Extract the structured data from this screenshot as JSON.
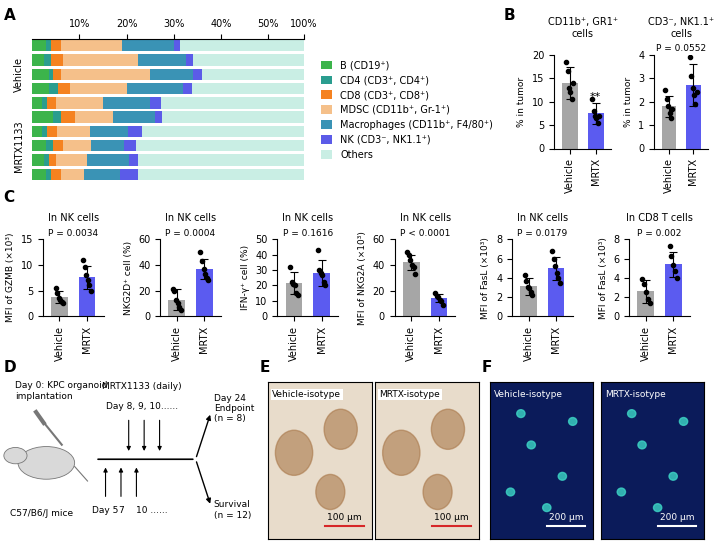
{
  "chart_data": [
    {
      "type": "bar",
      "panel": "A",
      "orientation": "horizontal",
      "stacked": true,
      "legend": "center left",
      "categories": [
        null,
        null,
        null,
        null,
        null,
        null,
        null,
        null,
        null,
        null
      ],
      "groups": [
        {
          "label": "Vehicle",
          "count": 5
        },
        {
          "label": "MRTX1133",
          "count": 5
        }
      ],
      "xlim": [
        0,
        100
      ],
      "xticks": [
        {
          "value": 10,
          "label": "10%"
        },
        {
          "value": 20,
          "label": "20%"
        },
        {
          "value": 30,
          "label": "30%"
        },
        {
          "value": 40,
          "label": "40%"
        },
        {
          "value": 50,
          "label": "50%"
        },
        {
          "value": 100,
          "label": "100%"
        }
      ],
      "series": [
        {
          "name": "B (CD19⁺)",
          "color": "#3cb44b",
          "values": [
            3.0,
            2.5,
            3.5,
            3.5,
            2.0,
            4.5,
            2.0,
            3.0,
            2.5,
            3.0
          ]
        },
        {
          "name": "CD4 (CD3⁺, CD4⁺)",
          "color": "#2a9d8f",
          "values": [
            1.0,
            1.5,
            1.0,
            2.0,
            1.2,
            1.5,
            1.2,
            1.5,
            1.0,
            1.0
          ]
        },
        {
          "name": "CD8 (CD3⁺, CD8⁺)",
          "color": "#f58220",
          "values": [
            2.0,
            2.5,
            1.5,
            2.5,
            1.8,
            3.0,
            2.0,
            2.0,
            1.5,
            2.0
          ]
        },
        {
          "name": "MDSC (CD11b⁺, Gr-1⁺)",
          "color": "#f5c08a",
          "values": [
            13.0,
            16.0,
            19.0,
            12.0,
            10.0,
            8.0,
            7.0,
            6.0,
            6.5,
            5.0
          ]
        },
        {
          "name": "Macrophages (CD11b⁺, F4/80⁺)",
          "color": "#3a93b5",
          "values": [
            11.0,
            10.0,
            9.0,
            12.0,
            10.0,
            9.0,
            8.0,
            7.0,
            9.0,
            7.5
          ]
        },
        {
          "name": "NK (CD3⁻, NK1.1⁺)",
          "color": "#5b5be8",
          "values": [
            1.2,
            1.5,
            2.0,
            1.8,
            2.2,
            1.5,
            3.0,
            2.5,
            2.0,
            4.0
          ]
        },
        {
          "name": "Others",
          "color": "#c9eee4",
          "values": [
            68.8,
            66.0,
            64.0,
            66.2,
            72.8,
            72.5,
            76.8,
            78.0,
            77.5,
            77.5
          ]
        }
      ]
    },
    {
      "type": "bar",
      "panel": "B",
      "title": "CD11b⁺, GR1⁺\ncells",
      "ylabel": "% in tumor",
      "categories": [
        "Vehicle",
        "MRTX"
      ],
      "colors": [
        "#a6a6a6",
        "#5b5bf0"
      ],
      "values": [
        14.0,
        7.5
      ],
      "errors": [
        3.5,
        2.2
      ],
      "points": [
        [
          18.5,
          16.5,
          13.0,
          12.0,
          10.5,
          14.0
        ],
        [
          10.5,
          8.0,
          7.0,
          6.5,
          5.5,
          7.0
        ]
      ],
      "annotations": [
        {
          "category": "MRTX",
          "text": "**"
        }
      ],
      "ylim": [
        0,
        20
      ],
      "yticks": [
        0,
        5,
        10,
        15,
        20
      ]
    },
    {
      "type": "bar",
      "title": "CD3⁻, NK1.1⁺\ncells",
      "ylabel": "% in tumor",
      "p_value": "P = 0.0552",
      "categories": [
        "Vehicle",
        "MRTX"
      ],
      "colors": [
        "#a6a6a6",
        "#5b5bf0"
      ],
      "values": [
        1.8,
        2.7
      ],
      "errors": [
        0.45,
        0.9
      ],
      "points": [
        [
          2.5,
          2.1,
          1.8,
          1.5,
          1.3,
          1.7
        ],
        [
          3.9,
          3.1,
          2.6,
          2.3,
          1.9,
          2.4
        ]
      ],
      "ylim": [
        0,
        4
      ],
      "yticks": [
        0,
        1,
        2,
        3,
        4
      ]
    },
    {
      "type": "bar",
      "panel": "C",
      "title": "In NK cells",
      "ylabel": "MFI of GZMB (×10³)",
      "p_value": "P = 0.0034",
      "categories": [
        "Vehicle",
        "MRTX"
      ],
      "colors": [
        "#a6a6a6",
        "#5b5bf0"
      ],
      "values": [
        3.7,
        7.6
      ],
      "errors": [
        1.2,
        2.2
      ],
      "points": [
        [
          5.5,
          4.5,
          3.5,
          3.2,
          2.8,
          2.5
        ],
        [
          11.0,
          9.5,
          8.0,
          7.0,
          6.0,
          5.0
        ]
      ],
      "ylim": [
        0,
        15
      ],
      "yticks": [
        0,
        5,
        10,
        15
      ]
    },
    {
      "type": "bar",
      "title": "In NK cells",
      "ylabel": "NKG2D⁺ cell (%)",
      "p_value": "P = 0.0004",
      "categories": [
        "Vehicle",
        "MRTX"
      ],
      "colors": [
        "#a6a6a6",
        "#5b5bf0"
      ],
      "values": [
        13.0,
        37.0
      ],
      "errors": [
        8.0,
        8.0
      ],
      "points": [
        [
          21.0,
          20.0,
          13.0,
          10.0,
          7.0,
          5.0
        ],
        [
          50.0,
          43.0,
          37.0,
          33.0,
          30.0,
          28.0
        ]
      ],
      "ylim": [
        0,
        60
      ],
      "yticks": [
        0,
        20,
        40,
        60
      ]
    },
    {
      "type": "bar",
      "title": "In NK cells",
      "ylabel": "IFN-γ⁺ cell (%)",
      "p_value": "P = 0.1616",
      "categories": [
        "Vehicle",
        "MRTX"
      ],
      "colors": [
        "#a6a6a6",
        "#5b5bf0"
      ],
      "values": [
        21.5,
        28.0
      ],
      "errors": [
        7.0,
        8.5
      ],
      "points": [
        [
          32.0,
          22.0,
          21.0,
          20.0,
          15.0,
          14.0
        ],
        [
          43.0,
          30.0,
          28.0,
          27.0,
          22.0,
          20.0
        ]
      ],
      "ylim": [
        0,
        50
      ],
      "yticks": [
        0,
        10,
        20,
        30,
        40,
        50
      ]
    },
    {
      "type": "bar",
      "title": "In NK cells",
      "ylabel": "MFI of NKG2A (×10³)",
      "p_value": "P < 0.0001",
      "categories": [
        "Vehicle",
        "MRTX"
      ],
      "colors": [
        "#a6a6a6",
        "#5b5bf0"
      ],
      "values": [
        42.0,
        14.0
      ],
      "errors": [
        6.0,
        3.0
      ],
      "points": [
        [
          50.0,
          48.0,
          44.0,
          40.0,
          38.0,
          33.0
        ],
        [
          18.0,
          16.0,
          15.0,
          13.0,
          12.0,
          9.0
        ]
      ],
      "ylim": [
        0,
        60
      ],
      "yticks": [
        0,
        20,
        40,
        60
      ]
    },
    {
      "type": "bar",
      "title": "In NK cells",
      "ylabel": "MFI of FasL (×10³)",
      "p_value": "P = 0.0179",
      "categories": [
        "Vehicle",
        "MRTX"
      ],
      "colors": [
        "#a6a6a6",
        "#5b5bf0"
      ],
      "values": [
        3.1,
        5.0
      ],
      "errors": [
        0.9,
        1.2
      ],
      "points": [
        [
          4.3,
          3.7,
          3.0,
          2.9,
          2.5,
          2.2
        ],
        [
          6.8,
          6.0,
          5.2,
          4.5,
          4.0,
          3.5
        ]
      ],
      "ylim": [
        0,
        8
      ],
      "yticks": [
        0,
        2,
        4,
        6,
        8
      ]
    },
    {
      "type": "bar",
      "title": "In CD8 T cells",
      "ylabel": "MFI of FasL (×10³)",
      "p_value": "P = 0.002",
      "categories": [
        "Vehicle",
        "MRTX"
      ],
      "colors": [
        "#a6a6a6",
        "#5b5bf0"
      ],
      "values": [
        2.6,
        5.4
      ],
      "errors": [
        1.2,
        1.3
      ],
      "points": [
        [
          3.9,
          3.3,
          2.5,
          1.8,
          1.4
        ],
        [
          7.3,
          6.3,
          5.3,
          4.7,
          4.0
        ]
      ],
      "ylim": [
        0,
        8
      ],
      "yticks": [
        0,
        2,
        4,
        6,
        8
      ]
    }
  ],
  "diagram": {
    "panel": "D",
    "implantation": "Day 0: KPC organoid\nimplantation",
    "mice": "C57/B6/J mice",
    "drug": "MRTX1133 (daily)",
    "drug_days": "Day 8, 9, 10......",
    "antibody_days": [
      "Day 5",
      "7",
      "10 ......"
    ],
    "endpoint": "Day 24\nEndpoint\n(n = 8)",
    "survival": "Survival\n(n = 12)"
  },
  "images": [
    {
      "panel": "E",
      "style": "ihc",
      "items": [
        {
          "label": "Vehicle-isotype",
          "scale_bar": "100 µm"
        },
        {
          "label": "MRTX-isotype",
          "scale_bar": "100 µm"
        }
      ]
    },
    {
      "panel": "F",
      "style": "fluorescence",
      "items": [
        {
          "label": "Vehicle-isotype",
          "scale_bar": "200 µm"
        },
        {
          "label": "MRTX-isotype",
          "scale_bar": "200 µm"
        }
      ]
    }
  ]
}
